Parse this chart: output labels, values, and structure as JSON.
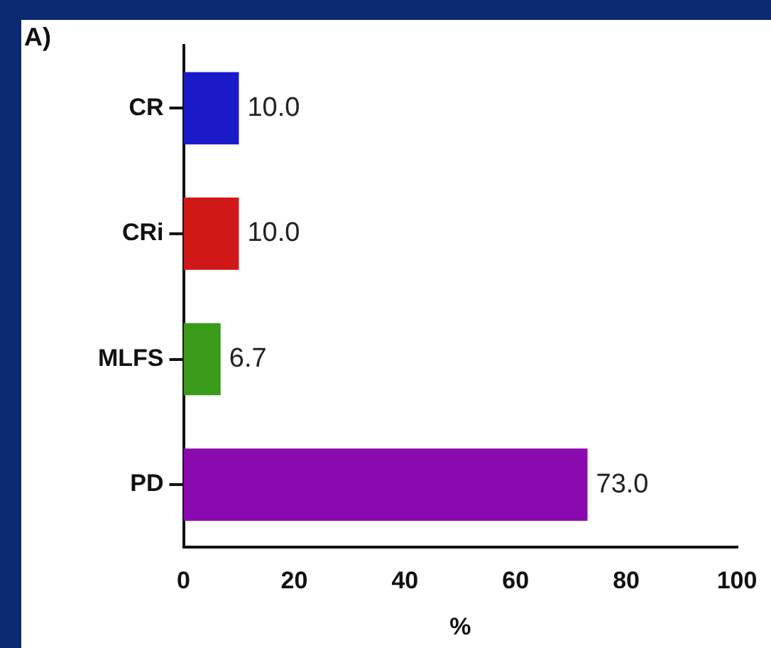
{
  "chart_data": {
    "type": "bar",
    "orientation": "horizontal",
    "xlabel": "%",
    "annotations": [
      "A)"
    ],
    "categories": [
      "CR",
      "CRi",
      "MLFS",
      "PD"
    ],
    "values": [
      10.0,
      10.0,
      6.7,
      73.0
    ],
    "value_labels": [
      "10.0",
      "10.0",
      "6.7",
      "73.0"
    ],
    "colors": [
      "#1a1ac8",
      "#d01818",
      "#3a9a1a",
      "#8a0ab0"
    ],
    "xlim": [
      0,
      100
    ],
    "xticks": [
      0,
      20,
      40,
      60,
      80,
      100
    ],
    "grid": false,
    "legend": false
  }
}
